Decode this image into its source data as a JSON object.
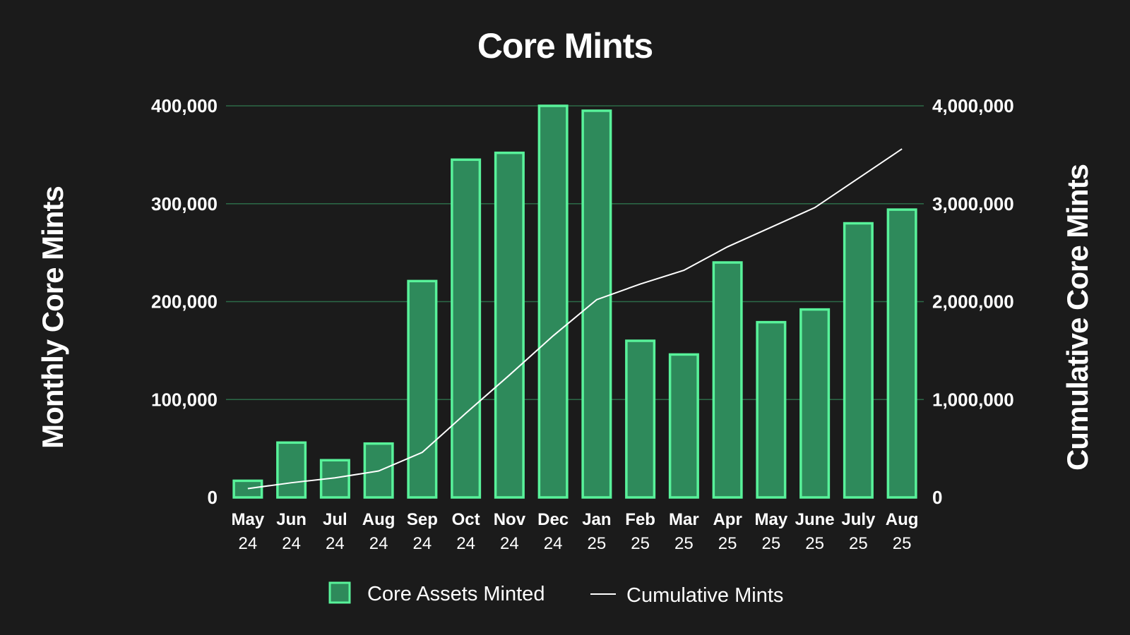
{
  "chart_data": {
    "type": "bar",
    "title": "Core Mints",
    "categories": [
      {
        "month": "May",
        "year": "24"
      },
      {
        "month": "Jun",
        "year": "24"
      },
      {
        "month": "Jul",
        "year": "24"
      },
      {
        "month": "Aug",
        "year": "24"
      },
      {
        "month": "Sep",
        "year": "24"
      },
      {
        "month": "Oct",
        "year": "24"
      },
      {
        "month": "Nov",
        "year": "24"
      },
      {
        "month": "Dec",
        "year": "24"
      },
      {
        "month": "Jan",
        "year": "25"
      },
      {
        "month": "Feb",
        "year": "25"
      },
      {
        "month": "Mar",
        "year": "25"
      },
      {
        "month": "Apr",
        "year": "25"
      },
      {
        "month": "May",
        "year": "25"
      },
      {
        "month": "June",
        "year": "25"
      },
      {
        "month": "July",
        "year": "25"
      },
      {
        "month": "Aug",
        "year": "25"
      }
    ],
    "series": [
      {
        "name": "Core Assets Minted",
        "type": "bar",
        "axis": "left",
        "values": [
          17000,
          56000,
          38000,
          55000,
          221000,
          345000,
          352000,
          400000,
          395000,
          160000,
          146000,
          240000,
          179000,
          192000,
          280000,
          294000
        ]
      },
      {
        "name": "Cumulative Mints",
        "type": "line",
        "axis": "right",
        "values": [
          90000,
          150000,
          200000,
          270000,
          460000,
          860000,
          1250000,
          1650000,
          2020000,
          2180000,
          2320000,
          2560000,
          2760000,
          2960000,
          3260000,
          3560000
        ]
      }
    ],
    "ylabel": "Monthly Core Mints",
    "ylim": [
      0,
      400000
    ],
    "yticks": [
      "0",
      "100,000",
      "200,000",
      "300,000",
      "400,000"
    ],
    "y2label": "Cumulative Core Mints",
    "y2lim": [
      0,
      4000000
    ],
    "y2ticks": [
      "0",
      "1,000,000",
      "2,000,000",
      "3,000,000",
      "4,000,000"
    ],
    "grid": true,
    "legend_position": "bottom-center",
    "colors": {
      "background": "#1b1b1b",
      "bar_fill": "#2e8a5b",
      "bar_stroke": "#58f29a",
      "grid": "#2c6b48",
      "line": "#ffffff"
    }
  }
}
